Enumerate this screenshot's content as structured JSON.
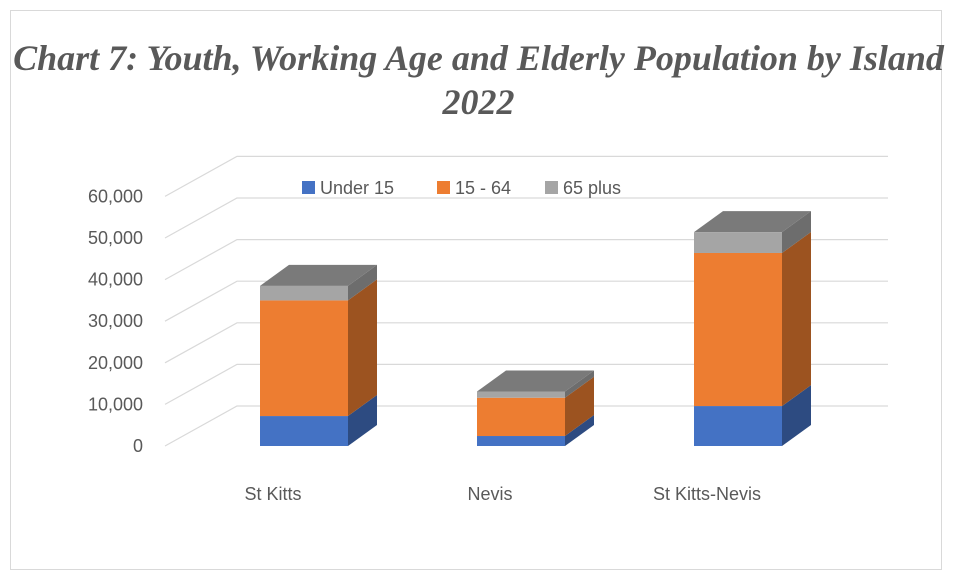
{
  "chart_data": {
    "type": "bar",
    "stacked": true,
    "three_d": true,
    "title": "Chart 7: Youth, Working Age and Elderly Population by Island 2022",
    "categories": [
      "St Kitts",
      "Nevis",
      "St Kitts-Nevis"
    ],
    "series": [
      {
        "name": "Under 15",
        "values": [
          7200,
          2400,
          9600
        ],
        "color": "#4472C4"
      },
      {
        "name": "15 - 64",
        "values": [
          27800,
          9200,
          36800
        ],
        "color": "#ED7D31"
      },
      {
        "name": "65 plus",
        "values": [
          3500,
          1500,
          5000
        ],
        "color": "#A5A5A5"
      }
    ],
    "ylim": [
      0,
      60000
    ],
    "yticks": [
      "0",
      "10,000",
      "20,000",
      "30,000",
      "40,000",
      "50,000",
      "60,000"
    ],
    "grid": true,
    "legend_position": "top"
  }
}
